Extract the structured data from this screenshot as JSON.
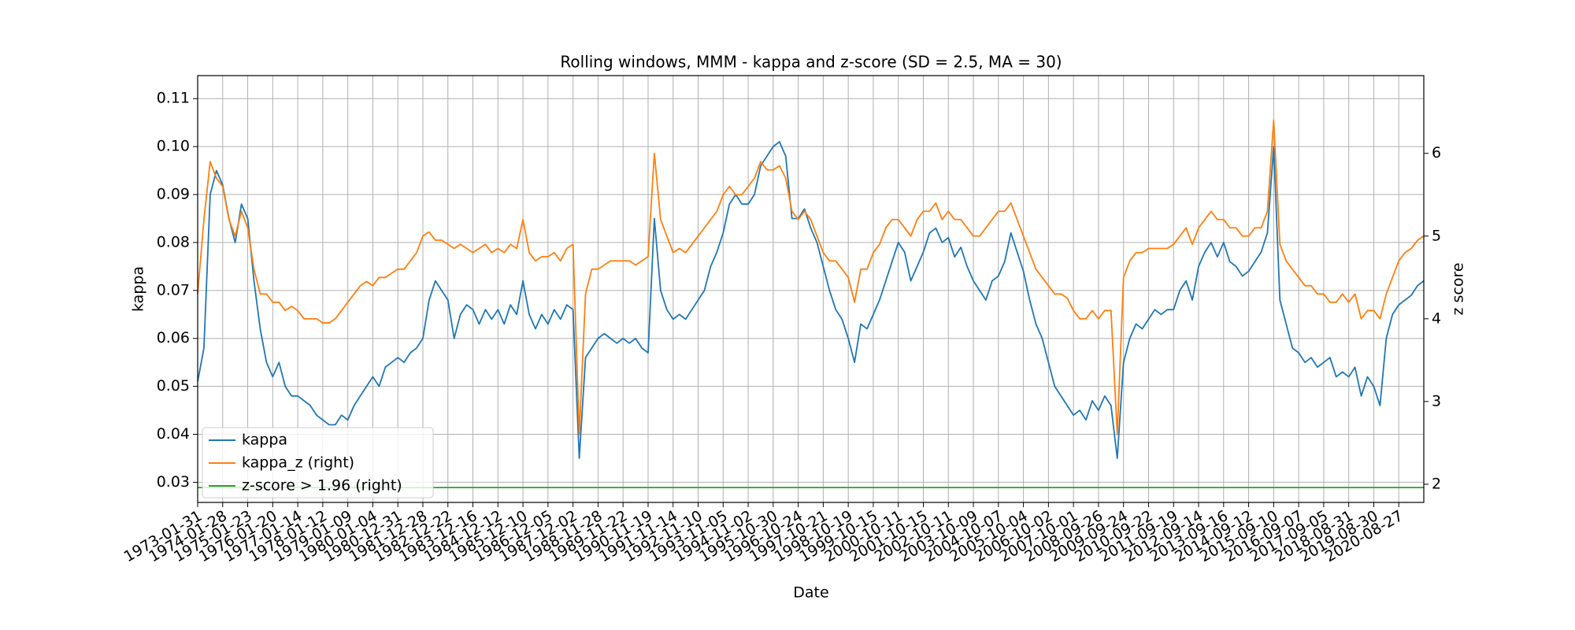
{
  "chart_data": {
    "type": "line",
    "title": "Rolling windows, MMM - kappa and z-score (SD = 2.5, MA = 30)",
    "xlabel": "Date",
    "ylabel": "kappa",
    "y2label": "z score",
    "categories": [
      "1973-01-31",
      null,
      null,
      null,
      "1974-01-28",
      null,
      null,
      null,
      "1975-01-23",
      null,
      null,
      null,
      "1976-01-20",
      null,
      null,
      null,
      "1977-01-14",
      null,
      null,
      null,
      "1978-01-12",
      null,
      null,
      null,
      "1979-01-09",
      null,
      null,
      null,
      "1980-01-04",
      null,
      null,
      null,
      "1980-12-31",
      null,
      null,
      null,
      "1981-12-28",
      null,
      null,
      null,
      "1982-12-22",
      null,
      null,
      null,
      "1983-12-16",
      null,
      null,
      null,
      "1984-12-12",
      null,
      null,
      null,
      "1985-12-10",
      null,
      null,
      null,
      "1986-12-05",
      null,
      null,
      null,
      "1987-12-02",
      null,
      null,
      null,
      "1988-11-28",
      null,
      null,
      null,
      "1989-11-22",
      null,
      null,
      null,
      "1990-11-19",
      null,
      null,
      null,
      "1991-11-14",
      null,
      null,
      null,
      "1992-11-10",
      null,
      null,
      null,
      "1993-11-05",
      null,
      null,
      null,
      "1994-11-02",
      null,
      null,
      null,
      "1995-10-30",
      null,
      null,
      null,
      "1996-10-24",
      null,
      null,
      null,
      "1997-10-21",
      null,
      null,
      null,
      "1998-10-19",
      null,
      null,
      null,
      "1999-10-15",
      null,
      null,
      null,
      "2000-10-11",
      null,
      null,
      null,
      "2001-10-15",
      null,
      null,
      null,
      "2002-10-11",
      null,
      null,
      null,
      "2003-10-09",
      null,
      null,
      null,
      "2004-10-07",
      null,
      null,
      null,
      "2005-10-04",
      null,
      null,
      null,
      "2006-10-02",
      null,
      null,
      null,
      "2007-10-01",
      null,
      null,
      null,
      "2008-09-26",
      null,
      null,
      null,
      "2009-09-24",
      null,
      null,
      null,
      "2010-09-22",
      null,
      null,
      null,
      "2011-09-19",
      null,
      null,
      null,
      "2012-09-14",
      null,
      null,
      null,
      "2013-09-16",
      null,
      null,
      null,
      "2014-09-12",
      null,
      null,
      null,
      "2015-09-10",
      null,
      null,
      null,
      "2016-09-07",
      null,
      null,
      null,
      "2017-09-05",
      null,
      null,
      null,
      "2018-08-31",
      null,
      null,
      null,
      "2019-08-30",
      null,
      null,
      null,
      "2020-08-27",
      null,
      null,
      null,
      null
    ],
    "series": [
      {
        "name": "kappa",
        "color": "#1f77b4",
        "axis": "y",
        "values": [
          0.051,
          0.058,
          0.09,
          0.095,
          0.092,
          0.085,
          0.08,
          0.088,
          0.085,
          0.072,
          0.062,
          0.055,
          0.052,
          0.055,
          0.05,
          0.048,
          0.048,
          0.047,
          0.046,
          0.044,
          0.043,
          0.042,
          0.042,
          0.044,
          0.043,
          0.046,
          0.048,
          0.05,
          0.052,
          0.05,
          0.054,
          0.055,
          0.056,
          0.055,
          0.057,
          0.058,
          0.06,
          0.068,
          0.072,
          0.07,
          0.068,
          0.06,
          0.065,
          0.067,
          0.066,
          0.063,
          0.066,
          0.064,
          0.066,
          0.063,
          0.067,
          0.065,
          0.072,
          0.065,
          0.062,
          0.065,
          0.063,
          0.066,
          0.064,
          0.067,
          0.066,
          0.035,
          0.056,
          0.058,
          0.06,
          0.061,
          0.06,
          0.059,
          0.06,
          0.059,
          0.06,
          0.058,
          0.057,
          0.085,
          0.07,
          0.066,
          0.064,
          0.065,
          0.064,
          0.066,
          0.068,
          0.07,
          0.075,
          0.078,
          0.082,
          0.088,
          0.09,
          0.088,
          0.088,
          0.09,
          0.096,
          0.098,
          0.1,
          0.101,
          0.098,
          0.085,
          0.085,
          0.087,
          0.083,
          0.08,
          0.075,
          0.07,
          0.066,
          0.064,
          0.06,
          0.055,
          0.063,
          0.062,
          0.065,
          0.068,
          0.072,
          0.076,
          0.08,
          0.078,
          0.072,
          0.075,
          0.078,
          0.082,
          0.083,
          0.08,
          0.081,
          0.077,
          0.079,
          0.075,
          0.072,
          0.07,
          0.068,
          0.072,
          0.073,
          0.076,
          0.082,
          0.078,
          0.074,
          0.068,
          0.063,
          0.06,
          0.055,
          0.05,
          0.048,
          0.046,
          0.044,
          0.045,
          0.043,
          0.047,
          0.045,
          0.048,
          0.046,
          0.035,
          0.055,
          0.06,
          0.063,
          0.062,
          0.064,
          0.066,
          0.065,
          0.066,
          0.066,
          0.07,
          0.072,
          0.068,
          0.075,
          0.078,
          0.08,
          0.077,
          0.08,
          0.076,
          0.075,
          0.073,
          0.074,
          0.076,
          0.078,
          0.082,
          0.1,
          0.068,
          0.063,
          0.058,
          0.057,
          0.055,
          0.056,
          0.054,
          0.055,
          0.056,
          0.052,
          0.053,
          0.052,
          0.054,
          0.048,
          0.052,
          0.05,
          0.046,
          0.06,
          0.065,
          0.067,
          0.068,
          0.069,
          0.071,
          0.072
        ]
      },
      {
        "name": "kappa_z (right)",
        "color": "#ff7f0e",
        "axis": "y2",
        "values": [
          4.3,
          5.2,
          5.9,
          5.7,
          5.6,
          5.2,
          5.0,
          5.3,
          5.1,
          4.6,
          4.3,
          4.3,
          4.2,
          4.2,
          4.1,
          4.15,
          4.1,
          4.0,
          4.0,
          4.0,
          3.95,
          3.95,
          4.0,
          4.1,
          4.2,
          4.3,
          4.4,
          4.45,
          4.4,
          4.5,
          4.5,
          4.55,
          4.6,
          4.6,
          4.7,
          4.8,
          5.0,
          5.05,
          4.95,
          4.95,
          4.9,
          4.85,
          4.9,
          4.85,
          4.8,
          4.85,
          4.9,
          4.8,
          4.85,
          4.8,
          4.9,
          4.85,
          5.2,
          4.8,
          4.7,
          4.75,
          4.75,
          4.8,
          4.7,
          4.85,
          4.9,
          2.6,
          4.3,
          4.6,
          4.6,
          4.65,
          4.7,
          4.7,
          4.7,
          4.7,
          4.65,
          4.7,
          4.75,
          6.0,
          5.2,
          5.0,
          4.8,
          4.85,
          4.8,
          4.9,
          5.0,
          5.1,
          5.2,
          5.3,
          5.5,
          5.6,
          5.5,
          5.5,
          5.6,
          5.7,
          5.9,
          5.8,
          5.8,
          5.85,
          5.7,
          5.3,
          5.2,
          5.3,
          5.2,
          5.0,
          4.8,
          4.7,
          4.7,
          4.6,
          4.5,
          4.2,
          4.6,
          4.6,
          4.8,
          4.9,
          5.1,
          5.2,
          5.2,
          5.1,
          5.0,
          5.2,
          5.3,
          5.3,
          5.4,
          5.2,
          5.3,
          5.2,
          5.2,
          5.1,
          5.0,
          5.0,
          5.1,
          5.2,
          5.3,
          5.3,
          5.4,
          5.2,
          5.0,
          4.8,
          4.6,
          4.5,
          4.4,
          4.3,
          4.3,
          4.25,
          4.1,
          4.0,
          4.0,
          4.1,
          4.0,
          4.1,
          4.1,
          2.6,
          4.5,
          4.7,
          4.8,
          4.8,
          4.85,
          4.85,
          4.85,
          4.85,
          4.9,
          5.0,
          5.1,
          4.9,
          5.1,
          5.2,
          5.3,
          5.2,
          5.2,
          5.1,
          5.1,
          5.0,
          5.0,
          5.1,
          5.1,
          5.3,
          6.4,
          4.9,
          4.7,
          4.6,
          4.5,
          4.4,
          4.4,
          4.3,
          4.3,
          4.2,
          4.2,
          4.3,
          4.2,
          4.3,
          4.0,
          4.1,
          4.1,
          4.0,
          4.3,
          4.5,
          4.7,
          4.8,
          4.85,
          4.95,
          5.0
        ]
      },
      {
        "name": "z-score > 1.96 (right)",
        "color": "#2ca02c",
        "axis": "y2",
        "values": [
          1.96,
          1.96,
          1.96,
          1.96,
          1.96,
          1.96,
          1.96,
          1.96,
          1.96,
          1.96,
          1.96,
          1.96,
          1.96,
          1.96,
          1.96,
          1.96,
          1.96,
          1.96,
          1.96,
          1.96,
          1.96,
          1.96,
          1.96,
          1.96,
          1.96,
          1.96,
          1.96,
          1.96,
          1.96,
          1.96,
          1.96,
          1.96,
          1.96,
          1.96,
          1.96,
          1.96,
          1.96,
          1.96,
          1.96,
          1.96,
          1.96,
          1.96,
          1.96,
          1.96,
          1.96,
          1.96,
          1.96,
          1.96,
          1.96,
          1.96,
          1.96,
          1.96,
          1.96,
          1.96,
          1.96,
          1.96,
          1.96,
          1.96,
          1.96,
          1.96,
          1.96,
          1.96,
          1.96,
          1.96,
          1.96,
          1.96,
          1.96,
          1.96,
          1.96,
          1.96,
          1.96,
          1.96,
          1.96,
          1.96,
          1.96,
          1.96,
          1.96,
          1.96,
          1.96,
          1.96,
          1.96,
          1.96,
          1.96,
          1.96,
          1.96,
          1.96,
          1.96,
          1.96,
          1.96,
          1.96,
          1.96,
          1.96,
          1.96,
          1.96,
          1.96,
          1.96,
          1.96,
          1.96,
          1.96,
          1.96,
          1.96,
          1.96,
          1.96,
          1.96,
          1.96,
          1.96,
          1.96,
          1.96,
          1.96,
          1.96,
          1.96,
          1.96,
          1.96,
          1.96,
          1.96,
          1.96,
          1.96,
          1.96,
          1.96,
          1.96,
          1.96,
          1.96,
          1.96,
          1.96,
          1.96,
          1.96,
          1.96,
          1.96,
          1.96,
          1.96,
          1.96,
          1.96,
          1.96,
          1.96,
          1.96,
          1.96,
          1.96,
          1.96,
          1.96,
          1.96,
          1.96,
          1.96,
          1.96,
          1.96,
          1.96,
          1.96,
          1.96,
          1.96,
          1.96,
          1.96,
          1.96,
          1.96,
          1.96,
          1.96,
          1.96,
          1.96,
          1.96,
          1.96,
          1.96,
          1.96,
          1.96,
          1.96,
          1.96,
          1.96,
          1.96,
          1.96,
          1.96,
          1.96,
          1.96,
          1.96,
          1.96,
          1.96,
          1.96,
          1.96,
          1.96,
          1.96,
          1.96,
          1.96,
          1.96,
          1.96,
          1.96,
          1.96,
          1.96,
          1.96,
          1.96,
          1.96,
          1.96,
          1.96,
          1.96,
          1.96,
          1.96,
          1.96,
          1.96,
          1.96,
          1.96,
          1.96,
          1.96
        ]
      }
    ],
    "ylim": [
      0.0258,
      0.1148
    ],
    "yticks": [
      0.03,
      0.04,
      0.05,
      0.06,
      0.07,
      0.08,
      0.09,
      {
        "value": 0.1,
        "label": "0.10"
      },
      0.11
    ],
    "y2lim": [
      1.78,
      6.94
    ],
    "y2ticks": [
      2,
      3,
      4,
      5,
      6
    ],
    "grid": true,
    "legend": "lower left"
  }
}
